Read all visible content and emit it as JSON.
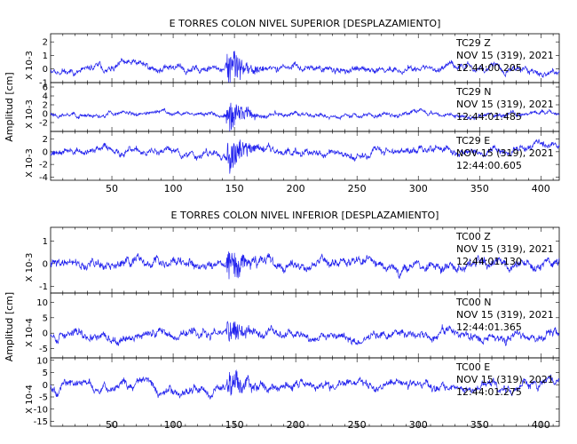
{
  "trace_color": "#2222ee",
  "chart_data": [
    {
      "type": "line",
      "title": "E TORRES COLON NIVEL SUPERIOR [DESPLAZAMIENTO]",
      "ylabel": "Amplitud [cm]",
      "xlim": [
        0,
        415
      ],
      "xticks": [
        "50",
        "100",
        "150",
        "200",
        "250",
        "300",
        "350",
        "400"
      ],
      "series": [
        {
          "name": "TC29   Z",
          "date": "NOV 15 (319), 2021",
          "time": "12:44:00.205",
          "scale_label": "X 10-3",
          "ylim": [
            -1.0,
            2.6
          ],
          "ytick_labels": [
            "2",
            "1",
            "0",
            "-1"
          ],
          "noise": 0.35,
          "burst": 1.6,
          "seed": 11
        },
        {
          "name": "TC29   N",
          "date": "NOV 15 (319), 2021",
          "time": "12:44:01.485",
          "scale_label": "X 10-3",
          "ylim": [
            -4.0,
            7.0
          ],
          "ytick_labels": [
            "6",
            "4",
            "2",
            "0",
            "-2"
          ],
          "noise": 0.7,
          "burst": 3.8,
          "seed": 23
        },
        {
          "name": "TC29   E",
          "date": "NOV 15 (319), 2021",
          "time": "12:44:00.605",
          "scale_label": "X 10-3",
          "ylim": [
            -4.5,
            3.2
          ],
          "ytick_labels": [
            "2",
            "0",
            "-2",
            "-4"
          ],
          "noise": 0.8,
          "burst": 3.0,
          "seed": 37
        }
      ]
    },
    {
      "type": "line",
      "title": "E TORRES COLON NIVEL INFERIOR [DESPLAZAMIENTO]",
      "ylabel": "Amplitud [cm]",
      "xlim": [
        0,
        415
      ],
      "xticks": [
        "50",
        "100",
        "150",
        "200",
        "250",
        "300",
        "350",
        "400"
      ],
      "series": [
        {
          "name": "TC00   Z",
          "date": "NOV 15 (319), 2021",
          "time": "12:44:01.130",
          "scale_label": "X 10-3",
          "ylim": [
            -1.3,
            1.6
          ],
          "ytick_labels": [
            "1",
            "0",
            "-1"
          ],
          "noise": 0.3,
          "burst": 0.8,
          "seed": 41
        },
        {
          "name": "TC00   N",
          "date": "NOV 15 (319), 2021",
          "time": "12:44:01.365",
          "scale_label": "X 10-4",
          "ylim": [
            -8.0,
            13.0
          ],
          "ytick_labels": [
            "10",
            "5",
            "0",
            "-5"
          ],
          "noise": 2.0,
          "burst": 4.0,
          "seed": 53
        },
        {
          "name": "TC00   E",
          "date": "NOV 15 (319), 2021",
          "time": "12:44:01.275",
          "scale_label": "X 10-4",
          "ylim": [
            -17.0,
            11.0
          ],
          "ytick_labels": [
            "10",
            "5",
            "0",
            "-5",
            "-10",
            "-15"
          ],
          "noise": 2.5,
          "burst": 6.0,
          "seed": 67
        }
      ]
    }
  ]
}
